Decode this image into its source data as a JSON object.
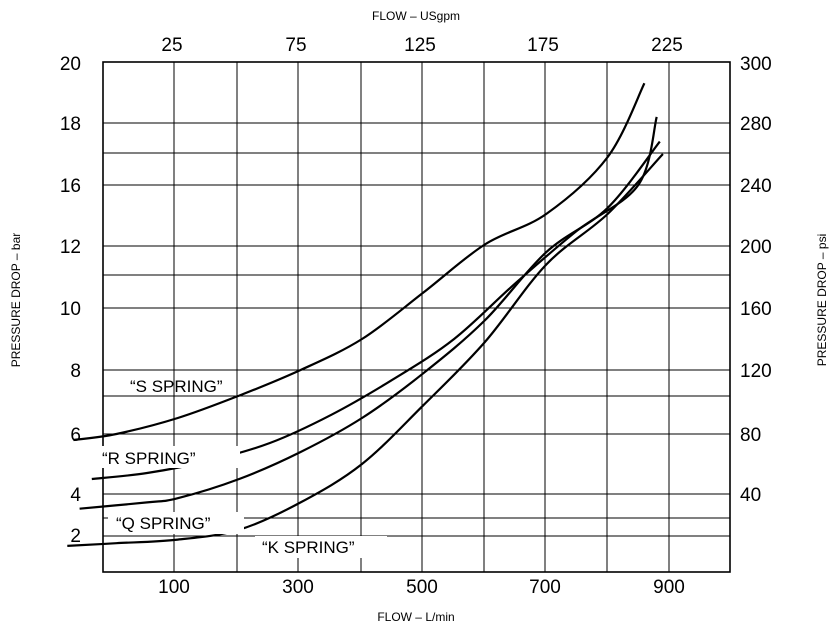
{
  "chart_data": {
    "type": "line",
    "top_axis_label": "FLOW – USgpm",
    "bottom_axis_label": "FLOW – L/min",
    "left_axis_label": "PRESSURE DROP – bar",
    "right_axis_label": "PRESSURE DROP – psi",
    "top_ticks": [
      "25",
      "75",
      "125",
      "175",
      "225"
    ],
    "bottom_ticks": [
      "100",
      "300",
      "500",
      "700",
      "900"
    ],
    "left_ticks": [
      "2",
      "4",
      "6",
      "8",
      "10",
      "12",
      "16",
      "18",
      "20"
    ],
    "right_ticks": [
      "40",
      "80",
      "120",
      "160",
      "200",
      "240",
      "280",
      "300"
    ],
    "xlim": [
      0,
      1000
    ],
    "grid": true,
    "series": [
      {
        "name": "“S  SPRING”",
        "x": [
          30,
          100,
          200,
          300,
          400,
          500,
          600,
          700,
          800,
          900,
          960
        ],
        "y": [
          5.8,
          6.0,
          6.5,
          7.2,
          8.0,
          9.0,
          10.5,
          12.1,
          14.1,
          16.9,
          19.3
        ]
      },
      {
        "name": "“R   SPRING”",
        "x": [
          60,
          150,
          250,
          350,
          450,
          550,
          650,
          750,
          850,
          950,
          980
        ],
        "y": [
          4.5,
          4.7,
          5.1,
          5.7,
          6.6,
          7.7,
          9.0,
          10.8,
          13.0,
          16.0,
          18.2
        ]
      },
      {
        "name": "“Q SPRING”",
        "x": [
          40,
          150,
          200,
          300,
          400,
          500,
          600,
          700,
          800,
          900,
          985
        ],
        "y": [
          3.3,
          3.6,
          3.8,
          4.5,
          5.4,
          6.5,
          7.9,
          9.6,
          11.8,
          14.5,
          17.4
        ]
      },
      {
        "name": "“K SPRING”",
        "x": [
          20,
          100,
          200,
          300,
          400,
          500,
          600,
          700,
          800,
          900,
          990
        ],
        "y": [
          1.45,
          1.6,
          1.8,
          2.3,
          3.6,
          5.0,
          6.9,
          8.9,
          11.4,
          14.1,
          17.0
        ]
      }
    ]
  }
}
